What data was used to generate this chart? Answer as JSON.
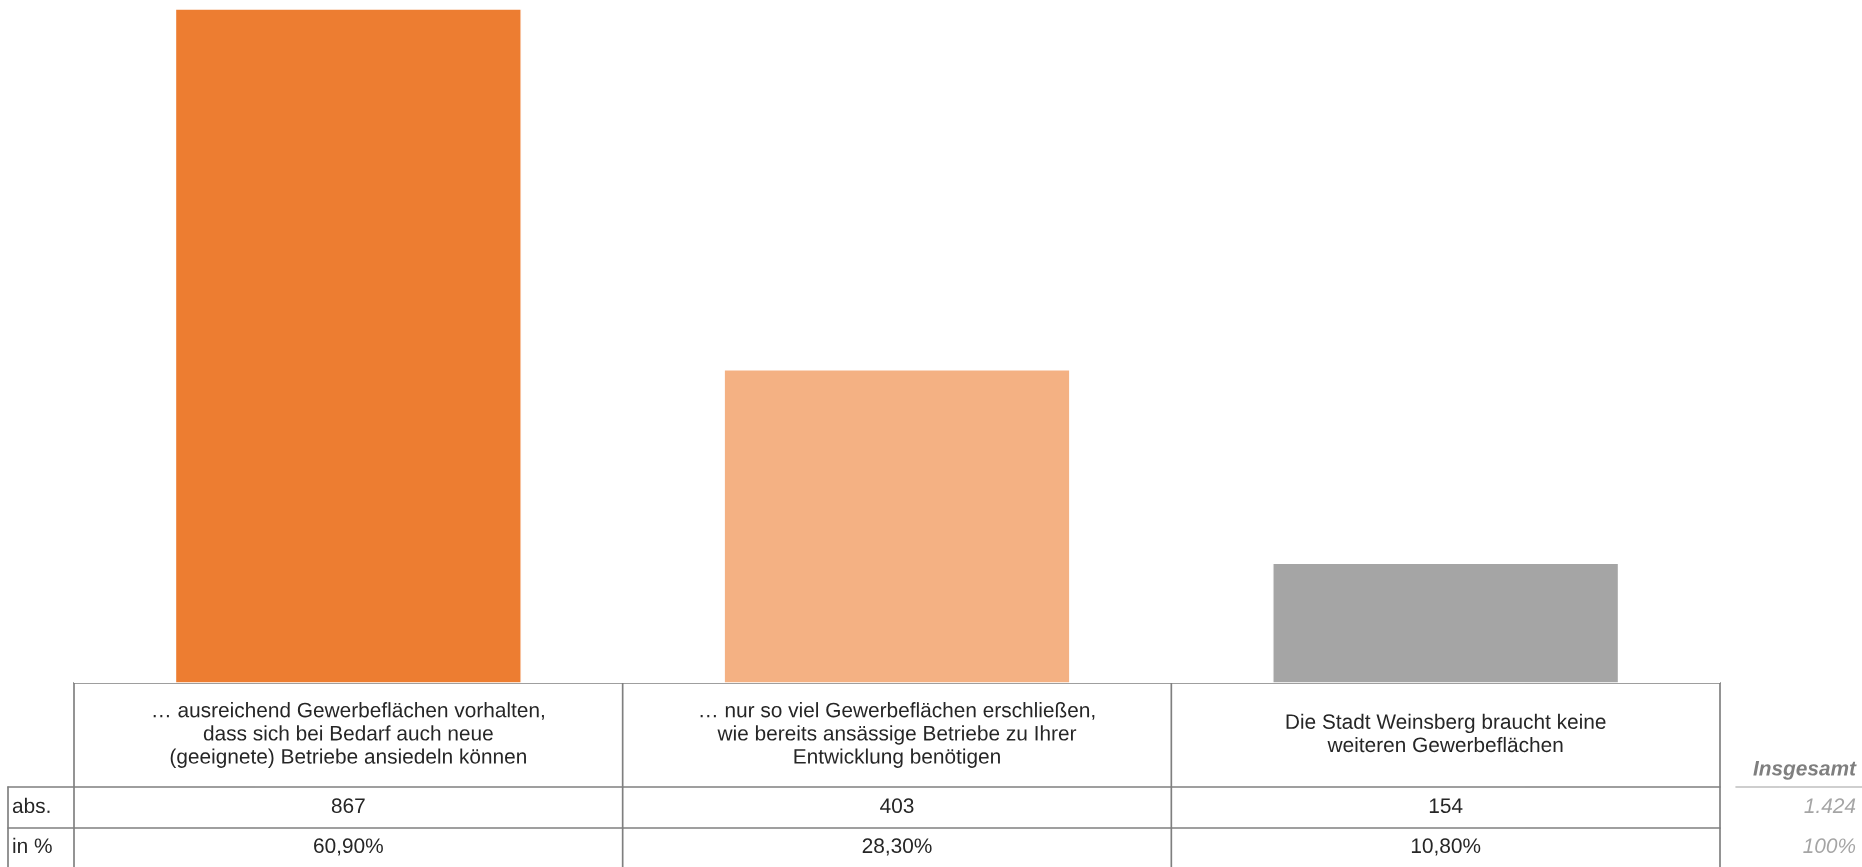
{
  "chart_data": {
    "type": "bar",
    "categories": [
      "… ausreichend Gewerbeflächen vorhalten,\ndass sich bei Bedarf auch neue\n(geeignete) Betriebe ansiedeln können",
      "… nur so viel Gewerbeflächen erschließen,\nwie bereits ansässige Betriebe zu Ihrer\nEntwicklung benötigen",
      "Die Stadt Weinsberg braucht keine\nweiteren Gewerbeflächen"
    ],
    "values": [
      867,
      403,
      154
    ],
    "colors": [
      "#ed7d31",
      "#f4b183",
      "#a5a5a5"
    ],
    "data_labels": true,
    "annotations": [
      "abs.",
      "in %",
      "60,90%",
      "28,30%",
      "10,80%",
      "Insgesamt",
      "1.424",
      "100%"
    ]
  }
}
